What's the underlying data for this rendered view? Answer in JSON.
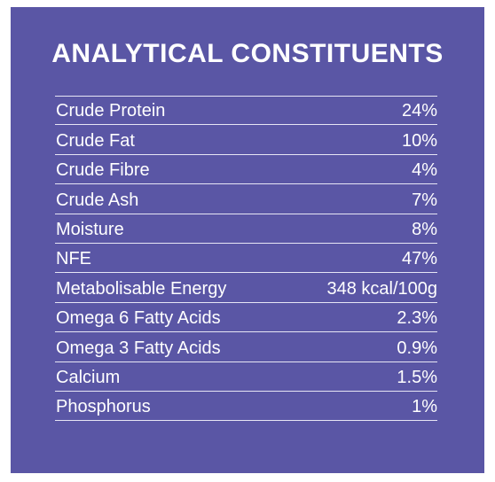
{
  "title": "ANALYTICAL CONSTITUENTS",
  "constituents": [
    {
      "label": "Crude Protein",
      "value": "24%"
    },
    {
      "label": "Crude Fat",
      "value": "10%"
    },
    {
      "label": "Crude Fibre",
      "value": "4%"
    },
    {
      "label": "Crude Ash",
      "value": "7%"
    },
    {
      "label": "Moisture",
      "value": "8%"
    },
    {
      "label": "NFE",
      "value": "47%"
    },
    {
      "label": "Metabolisable Energy",
      "value": "348 kcal/100g"
    },
    {
      "label": "Omega 6 Fatty Acids",
      "value": "2.3%"
    },
    {
      "label": "Omega 3 Fatty Acids",
      "value": "0.9%"
    },
    {
      "label": "Calcium",
      "value": "1.5%"
    },
    {
      "label": "Phosphorus",
      "value": "1%"
    }
  ],
  "colors": {
    "panel_background": "#5a56a5",
    "text": "#ffffff",
    "rule": "#e7e6f5"
  }
}
